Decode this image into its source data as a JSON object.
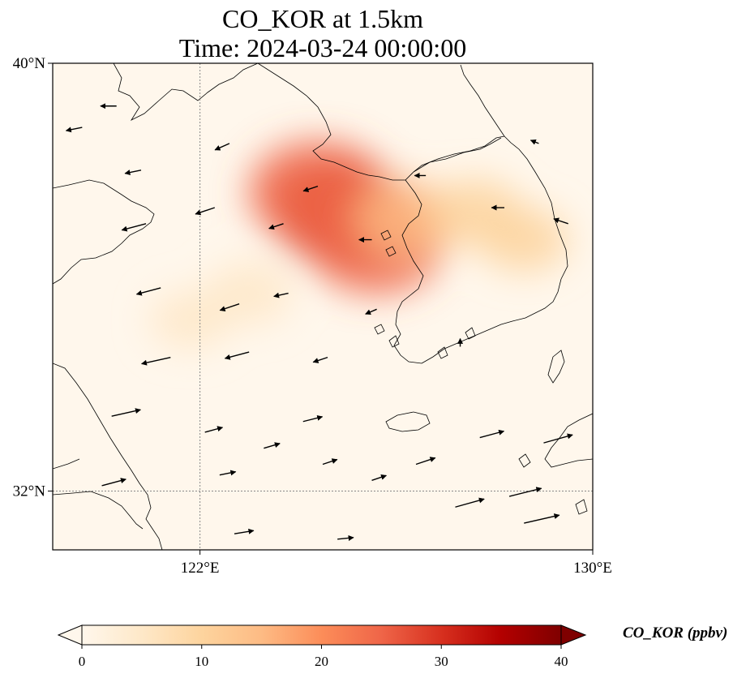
{
  "title": {
    "line1": "CO_KOR at 1.5km",
    "line2": "Time: 2024-03-24 00:00:00"
  },
  "map": {
    "type": "heatmap",
    "variable": "CO_KOR",
    "extent": {
      "lon": [
        119,
        130
      ],
      "lat": [
        30.9,
        40
      ]
    },
    "lat_ticks": [
      {
        "value": 40,
        "label": "40°N"
      },
      {
        "value": 32,
        "label": "32°N"
      }
    ],
    "lon_ticks": [
      {
        "value": 122,
        "label": "122°E"
      },
      {
        "value": 130,
        "label": "130°E"
      }
    ],
    "gridlines": {
      "lon": [
        122
      ],
      "lat": [
        32
      ]
    },
    "plumes": [
      {
        "lon": 124.9,
        "lat": 37.2,
        "value": 28
      },
      {
        "lon": 124.4,
        "lat": 37.6,
        "value": 27
      },
      {
        "lon": 125.6,
        "lat": 36.6,
        "value": 25
      },
      {
        "lon": 126.2,
        "lat": 37.1,
        "value": 14
      },
      {
        "lon": 127.6,
        "lat": 37.2,
        "value": 10
      },
      {
        "lon": 128.6,
        "lat": 36.7,
        "value": 8
      },
      {
        "lon": 123.0,
        "lat": 35.7,
        "value": 7
      },
      {
        "lon": 121.8,
        "lat": 35.2,
        "value": 5
      }
    ],
    "wind_vectors": [
      {
        "lon": 119.6,
        "lat": 38.8,
        "u": -1.0,
        "v": -0.2
      },
      {
        "lon": 120.3,
        "lat": 39.2,
        "u": -1.0,
        "v": 0.0
      },
      {
        "lon": 120.8,
        "lat": 38.0,
        "u": -1.0,
        "v": -0.2
      },
      {
        "lon": 120.9,
        "lat": 37.0,
        "u": -1.5,
        "v": -0.4
      },
      {
        "lon": 121.2,
        "lat": 35.8,
        "u": -1.5,
        "v": -0.4
      },
      {
        "lon": 121.4,
        "lat": 34.5,
        "u": -1.8,
        "v": -0.4
      },
      {
        "lon": 122.3,
        "lat": 37.3,
        "u": -1.2,
        "v": -0.4
      },
      {
        "lon": 122.6,
        "lat": 38.5,
        "u": -0.9,
        "v": -0.4
      },
      {
        "lon": 122.8,
        "lat": 35.5,
        "u": -1.2,
        "v": -0.4
      },
      {
        "lon": 123.0,
        "lat": 34.6,
        "u": -1.5,
        "v": -0.4
      },
      {
        "lon": 123.7,
        "lat": 37.0,
        "u": -0.9,
        "v": -0.3
      },
      {
        "lon": 123.8,
        "lat": 35.7,
        "u": -0.9,
        "v": -0.2
      },
      {
        "lon": 124.6,
        "lat": 34.5,
        "u": -0.9,
        "v": -0.3
      },
      {
        "lon": 125.5,
        "lat": 36.7,
        "u": -0.8,
        "v": 0.0
      },
      {
        "lon": 125.6,
        "lat": 35.4,
        "u": -0.7,
        "v": -0.3
      },
      {
        "lon": 124.4,
        "lat": 37.7,
        "u": -0.9,
        "v": -0.3
      },
      {
        "lon": 126.6,
        "lat": 37.9,
        "u": -0.7,
        "v": 0.0
      },
      {
        "lon": 127.3,
        "lat": 34.7,
        "u": 0.0,
        "v": 0.5
      },
      {
        "lon": 128.2,
        "lat": 37.3,
        "u": -0.8,
        "v": 0.0
      },
      {
        "lon": 128.9,
        "lat": 38.5,
        "u": -0.5,
        "v": 0.2
      },
      {
        "lon": 129.5,
        "lat": 37.0,
        "u": -0.9,
        "v": 0.3
      },
      {
        "lon": 122.1,
        "lat": 33.1,
        "u": 1.1,
        "v": 0.3
      },
      {
        "lon": 122.4,
        "lat": 32.3,
        "u": 1.0,
        "v": 0.2
      },
      {
        "lon": 123.3,
        "lat": 32.8,
        "u": 1.0,
        "v": 0.3
      },
      {
        "lon": 124.1,
        "lat": 33.3,
        "u": 1.2,
        "v": 0.3
      },
      {
        "lon": 124.5,
        "lat": 32.5,
        "u": 0.9,
        "v": 0.3
      },
      {
        "lon": 125.5,
        "lat": 32.2,
        "u": 0.9,
        "v": 0.3
      },
      {
        "lon": 126.4,
        "lat": 32.5,
        "u": 1.2,
        "v": 0.4
      },
      {
        "lon": 127.2,
        "lat": 31.7,
        "u": 1.8,
        "v": 0.5
      },
      {
        "lon": 127.7,
        "lat": 33.0,
        "u": 1.5,
        "v": 0.4
      },
      {
        "lon": 128.3,
        "lat": 31.9,
        "u": 2.0,
        "v": 0.5
      },
      {
        "lon": 129.0,
        "lat": 32.9,
        "u": 1.8,
        "v": 0.5
      },
      {
        "lon": 128.6,
        "lat": 31.4,
        "u": 2.2,
        "v": 0.5
      },
      {
        "lon": 120.0,
        "lat": 32.1,
        "u": 1.5,
        "v": 0.4
      },
      {
        "lon": 120.2,
        "lat": 33.4,
        "u": 1.8,
        "v": 0.4
      },
      {
        "lon": 122.7,
        "lat": 31.2,
        "u": 1.2,
        "v": 0.2
      },
      {
        "lon": 124.8,
        "lat": 31.1,
        "u": 1.0,
        "v": 0.1
      }
    ]
  },
  "colorbar": {
    "label": "CO_KOR (ppbv)",
    "ticks": [
      0,
      10,
      20,
      30,
      40
    ],
    "min": 0,
    "max": 40,
    "colors": [
      "#fff7ec",
      "#fee8c8",
      "#fdd49e",
      "#fdbb84",
      "#fc8d59",
      "#ef6548",
      "#d7301f",
      "#b30000",
      "#7f0000"
    ]
  }
}
